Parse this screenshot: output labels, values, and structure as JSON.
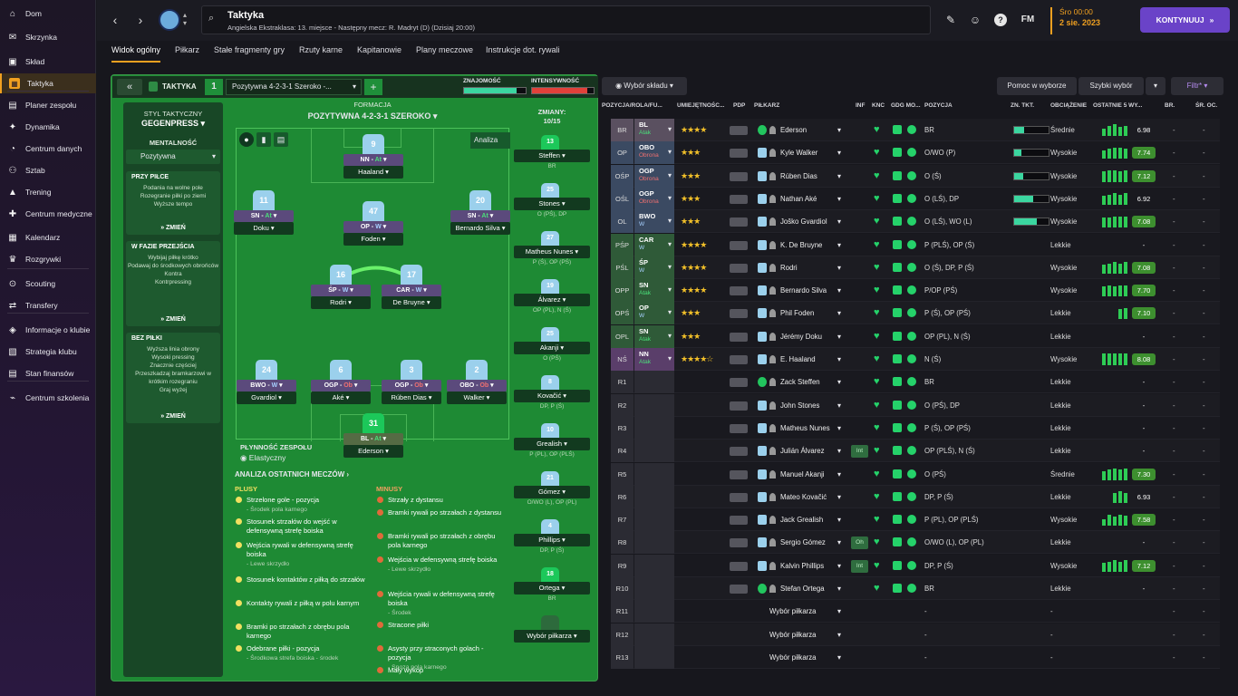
{
  "sidebar": {
    "items": [
      {
        "label": "Dom",
        "icon": "home-icon"
      },
      {
        "label": "Skrzynka",
        "icon": "inbox-icon"
      },
      {
        "label": "Skład",
        "icon": "shirt-icon"
      },
      {
        "label": "Taktyka",
        "icon": "tactics-icon",
        "active": true
      },
      {
        "label": "Planer zespołu",
        "icon": "planner-icon"
      },
      {
        "label": "Dynamika",
        "icon": "dynamics-icon"
      },
      {
        "label": "Centrum danych",
        "icon": "data-hub-icon"
      },
      {
        "label": "Sztab",
        "icon": "staff-icon"
      },
      {
        "label": "Trening",
        "icon": "training-icon"
      },
      {
        "label": "Centrum medyczne",
        "icon": "medical-icon"
      },
      {
        "label": "Kalendarz",
        "icon": "calendar-icon"
      },
      {
        "label": "Rozgrywki",
        "icon": "trophy-icon"
      },
      {
        "label": "Scouting",
        "icon": "scouting-icon"
      },
      {
        "label": "Transfery",
        "icon": "transfers-icon"
      },
      {
        "label": "Informacje o klubie",
        "icon": "club-info-icon"
      },
      {
        "label": "Strategia klubu",
        "icon": "strategy-icon"
      },
      {
        "label": "Stan finansów",
        "icon": "finances-icon"
      },
      {
        "label": "Centrum szkolenia",
        "icon": "academy-icon"
      }
    ]
  },
  "header": {
    "title": "Taktyka",
    "subtitle": "Angielska Ekstraklasa: 13. miejsce - Następny mecz: R. Madryt (D) (Dzisiaj 20:00)",
    "time": "Śro 00:00",
    "date": "2 sie. 2023",
    "continue_label": "KONTYNUUJ",
    "fm_label": "FM"
  },
  "tabs": [
    "Widok ogólny",
    "Piłkarz",
    "Stałe fragmenty gry",
    "Rzuty karne",
    "Kapitanowie",
    "Plany meczowe",
    "Instrukcje dot. rywali"
  ],
  "tactic": {
    "label": "TAKTYKA",
    "slot": "1",
    "name": "Pozytywna 4-2-3-1 Szeroko -...",
    "familiarity_label": "ZNAJOMOŚĆ",
    "familiarity": 0.85,
    "intensity_label": "INTENSYWNOŚĆ",
    "intensity": 0.9,
    "formation_label": "FORMACJA",
    "formation": "POZYTYWNA 4-2-3-1 SZEROKO",
    "analiza": "Analiza",
    "fluidity_label": "PŁYNNOŚĆ ZESPOŁU",
    "fluidity": "Elastyczny",
    "subs_label": "ZMIANY:",
    "subs_count": "10/15"
  },
  "style": {
    "title": "STYL TAKTYCZNY",
    "name": "GEGENPRESS",
    "mentality_label": "MENTALNOŚĆ",
    "mentality": "Pozytywna",
    "with_ball_title": "PRZY PIŁCE",
    "with_ball_lines": [
      "Podania na wolne pole",
      "Rozegranie piłki po ziemi",
      "Wyższe tempo"
    ],
    "transition_title": "W FAZIE PRZEJŚCIA",
    "transition_lines": [
      "Wybijaj piłkę krótko",
      "Podawaj do środkowych obrońców",
      "Kontra",
      "Kontrpressing"
    ],
    "without_ball_title": "BEZ PIŁKI",
    "without_ball_lines": [
      "Wyższa linia obrony",
      "Wysoki pressing",
      "Znacznie częściej",
      "Przeszkadzaj bramkarzowi w krótkim rozegraniu",
      "Graj wyżej"
    ],
    "change_label": "ZMIEŃ"
  },
  "pitch_players": [
    {
      "num": "9",
      "role": "NN",
      "duty": "At",
      "name": "Haaland"
    },
    {
      "num": "11",
      "role": "SN",
      "duty": "At",
      "name": "Doku"
    },
    {
      "num": "47",
      "role": "OP",
      "duty": "W",
      "name": "Foden"
    },
    {
      "num": "20",
      "role": "SN",
      "duty": "At",
      "name": "Bernardo Silva"
    },
    {
      "num": "16",
      "role": "ŚP",
      "duty": "W",
      "name": "Rodri"
    },
    {
      "num": "17",
      "role": "CAR",
      "duty": "W",
      "name": "De Bruyne"
    },
    {
      "num": "24",
      "role": "BWO",
      "duty": "W",
      "name": "Gvardiol"
    },
    {
      "num": "6",
      "role": "OGP",
      "duty": "Ob",
      "name": "Aké"
    },
    {
      "num": "3",
      "role": "OGP",
      "duty": "Ob",
      "name": "Rúben Dias"
    },
    {
      "num": "2",
      "role": "OBO",
      "duty": "Ob",
      "name": "Walker"
    },
    {
      "num": "31",
      "role": "BL",
      "duty": "At",
      "name": "Ederson",
      "gk": true
    }
  ],
  "subs": [
    {
      "num": "13",
      "name": "Steffen",
      "pos": "BR",
      "gk": true
    },
    {
      "num": "25",
      "name": "Stones",
      "pos": "O (PŚ), DP"
    },
    {
      "num": "27",
      "name": "Matheus Nunes",
      "pos": "P (Ś), OP (PŚ)"
    },
    {
      "num": "19",
      "name": "Álvarez",
      "pos": "OP (PL), N (Ś)"
    },
    {
      "num": "25",
      "name": "Akanji",
      "pos": "O (PŚ)"
    },
    {
      "num": "8",
      "name": "Kovačić",
      "pos": "DP, P (Ś)"
    },
    {
      "num": "10",
      "name": "Grealish",
      "pos": "P (PL), OP (PLŚ)"
    },
    {
      "num": "21",
      "name": "Gómez",
      "pos": "O/WO (L), OP (PL)"
    },
    {
      "num": "4",
      "name": "Phillips",
      "pos": "DP, P (Ś)"
    },
    {
      "num": "18",
      "name": "Ortega",
      "pos": "BR",
      "gk": true
    },
    {
      "num": "",
      "name": "Wybór piłkarza",
      "pos": ""
    }
  ],
  "analysis": {
    "title": "ANALIZA OSTATNICH MECZÓW",
    "plus_title": "PLUSY",
    "minus_title": "MINUSY",
    "plus": [
      {
        "t": "Strzelone gole - pozycja",
        "s": "- Środek pola karnego"
      },
      {
        "t": "Stosunek strzałów do wejść w defensywną strefę boiska",
        "s": ""
      },
      {
        "t": "Wejścia rywali w defensywną strefę boiska",
        "s": "- Lewe skrzydło"
      },
      {
        "t": "Stosunek kontaktów z piłką do strzałów",
        "s": ""
      },
      {
        "t": "Kontakty rywali z piłką w polu karnym",
        "s": ""
      },
      {
        "t": "Bramki po strzałach z obrębu pola karnego",
        "s": ""
      },
      {
        "t": "Odebrane piłki - pozycja",
        "s": "- Środkowa strefa boiska - środek"
      }
    ],
    "minus": [
      {
        "t": "Strzały z dystansu",
        "s": ""
      },
      {
        "t": "Bramki rywali po strzałach z dystansu",
        "s": ""
      },
      {
        "t": "Bramki rywali po strzałach z obrębu pola karnego",
        "s": ""
      },
      {
        "t": "Wejścia w defensywną strefę boiska",
        "s": "- Lewe skrzydło"
      },
      {
        "t": "Wejścia rywali w defensywną strefę boiska",
        "s": "- Środek"
      },
      {
        "t": "Stracone piłki",
        "s": ""
      },
      {
        "t": "Asysty przy straconych golach - pozycja",
        "s": "- Spoza pola karnego"
      },
      {
        "t": "Mały wykop",
        "s": ""
      }
    ]
  },
  "squad": {
    "picker_label": "Wybór składu",
    "help_label": "Pomoc w wyborze",
    "quick_label": "Szybki wybór",
    "filter_label": "Filtr*",
    "columns": [
      "POZYCJA/ROLA/FU...",
      "UMIEJĘTNOŚC...",
      "PDP",
      "PIŁKARZ",
      "INF",
      "KNC",
      "GDG MO...",
      "POZYCJA",
      "ZN. TKT.",
      "OBCIĄŻENIE",
      "OSTATNIE 5 WY...",
      "BR.",
      "ŚR. OC."
    ],
    "rows": [
      {
        "slot": "BR",
        "role": "BL",
        "duty": "Atak",
        "stars": "★★★★",
        "name": "Ederson",
        "pos": "BR",
        "fam": 0.3,
        "load": "Średnie",
        "form": [
          6,
          8,
          9,
          7,
          8
        ],
        "rating": "6.98",
        "good": false,
        "gk": true,
        "inf": "",
        "br": "-",
        "avg": "-"
      },
      {
        "slot": "OP",
        "role": "OBO",
        "duty": "Obrona",
        "stars": "★★★",
        "name": "Kyle Walker",
        "pos": "O/WO (P)",
        "fam": 0.2,
        "load": "Wysokie",
        "form": [
          7,
          8,
          9,
          9,
          8
        ],
        "rating": "7.74",
        "good": true,
        "inf": "",
        "br": "-",
        "avg": "-"
      },
      {
        "slot": "OŚP",
        "role": "OGP",
        "duty": "Obrona",
        "stars": "★★★",
        "name": "Rúben Dias",
        "pos": "O (Ś)",
        "fam": 0.25,
        "load": "Wysokie",
        "form": [
          8,
          9,
          9,
          8,
          9
        ],
        "rating": "7.12",
        "good": true,
        "inf": "",
        "br": "-",
        "avg": "-"
      },
      {
        "slot": "OŚL",
        "role": "OGP",
        "duty": "Obrona",
        "stars": "★★★",
        "name": "Nathan Aké",
        "pos": "O (LŚ), DP",
        "fam": 0.55,
        "load": "Wysokie",
        "form": [
          7,
          8,
          9,
          8,
          9
        ],
        "rating": "6.92",
        "good": false,
        "inf": "",
        "br": "-",
        "avg": "-"
      },
      {
        "slot": "OL",
        "role": "BWO",
        "duty": "W",
        "stars": "★★★",
        "name": "Joško Gvardiol",
        "pos": "O (LŚ), WO (L)",
        "fam": 0.65,
        "load": "Wysokie",
        "form": [
          8,
          8,
          9,
          9,
          9
        ],
        "rating": "7.08",
        "good": true,
        "inf": "",
        "br": "-",
        "avg": "-"
      },
      {
        "slot": "PŚP",
        "role": "CAR",
        "duty": "W",
        "stars": "★★★★",
        "name": "K. De Bruyne",
        "pos": "P (PLŚ), OP (Ś)",
        "fam": 0.0,
        "load": "Lekkie",
        "form": [],
        "rating": "-",
        "good": false,
        "inf": "",
        "br": "-",
        "avg": "-"
      },
      {
        "slot": "PŚL",
        "role": "ŚP",
        "duty": "W",
        "stars": "★★★★",
        "name": "Rodri",
        "pos": "O (Ś), DP, P (Ś)",
        "fam": 0.0,
        "load": "Wysokie",
        "form": [
          7,
          8,
          9,
          8,
          9
        ],
        "rating": "7.08",
        "good": true,
        "inf": "",
        "br": "-",
        "avg": "-"
      },
      {
        "slot": "OPP",
        "role": "SN",
        "duty": "Atak",
        "stars": "★★★★",
        "name": "Bernardo Silva",
        "pos": "P/OP (PŚ)",
        "fam": 0.0,
        "load": "Wysokie",
        "form": [
          8,
          9,
          8,
          9,
          9
        ],
        "rating": "7.70",
        "good": true,
        "inf": "",
        "br": "-",
        "avg": "-"
      },
      {
        "slot": "OPŚ",
        "role": "OP",
        "duty": "W",
        "stars": "★★★",
        "name": "Phil Foden",
        "pos": "P (Ś), OP (PŚ)",
        "fam": 0.0,
        "load": "Lekkie",
        "form": [
          0,
          0,
          0,
          8,
          9
        ],
        "rating": "7.10",
        "good": true,
        "inf": "",
        "br": "-",
        "avg": "-"
      },
      {
        "slot": "OPL",
        "role": "SN",
        "duty": "Atak",
        "stars": "★★★",
        "name": "Jérémy Doku",
        "pos": "OP (PL), N (Ś)",
        "fam": 0.0,
        "load": "Lekkie",
        "form": [],
        "rating": "-",
        "good": false,
        "inf": "",
        "br": "-",
        "avg": "-"
      },
      {
        "slot": "NŚ",
        "role": "NN",
        "duty": "Atak",
        "stars": "★★★★☆",
        "name": "E. Haaland",
        "pos": "N (Ś)",
        "fam": 0.0,
        "load": "Wysokie",
        "form": [
          9,
          9,
          9,
          9,
          9
        ],
        "rating": "8.08",
        "good": true,
        "inf": "",
        "br": "-",
        "avg": "-"
      },
      {
        "slot": "R1",
        "role": "",
        "duty": "",
        "stars": "",
        "name": "Zack Steffen",
        "pos": "BR",
        "fam": 0.0,
        "load": "Lekkie",
        "form": [],
        "rating": "-",
        "good": false,
        "gk": true,
        "inf": "",
        "br": "-",
        "avg": "-"
      },
      {
        "slot": "R2",
        "role": "",
        "duty": "",
        "stars": "",
        "name": "John Stones",
        "pos": "O (PŚ), DP",
        "fam": 0.0,
        "load": "Lekkie",
        "form": [],
        "rating": "-",
        "good": false,
        "inf": "",
        "br": "-",
        "avg": "-"
      },
      {
        "slot": "R3",
        "role": "",
        "duty": "",
        "stars": "",
        "name": "Matheus Nunes",
        "pos": "P (Ś), OP (PŚ)",
        "fam": 0.0,
        "load": "Lekkie",
        "form": [],
        "rating": "-",
        "good": false,
        "inf": "",
        "br": "-",
        "avg": "-"
      },
      {
        "slot": "R4",
        "role": "",
        "duty": "",
        "stars": "",
        "name": "Julián Álvarez",
        "pos": "OP (PLŚ), N (Ś)",
        "fam": 0.0,
        "load": "Lekkie",
        "form": [],
        "rating": "-",
        "good": false,
        "inf": "Int",
        "br": "-",
        "avg": "-"
      },
      {
        "slot": "R5",
        "role": "",
        "duty": "",
        "stars": "",
        "name": "Manuel Akanji",
        "pos": "O (PŚ)",
        "fam": 0.0,
        "load": "Średnie",
        "form": [
          7,
          8,
          9,
          8,
          9
        ],
        "rating": "7.30",
        "good": true,
        "inf": "",
        "br": "-",
        "avg": "-"
      },
      {
        "slot": "R6",
        "role": "",
        "duty": "",
        "stars": "",
        "name": "Mateo Kovačić",
        "pos": "DP, P (Ś)",
        "fam": 0.0,
        "load": "Lekkie",
        "form": [
          0,
          0,
          8,
          9,
          8
        ],
        "rating": "6.93",
        "good": false,
        "inf": "",
        "br": "-",
        "avg": "-"
      },
      {
        "slot": "R7",
        "role": "",
        "duty": "",
        "stars": "",
        "name": "Jack Grealish",
        "pos": "P (PL), OP (PLŚ)",
        "fam": 0.0,
        "load": "Wysokie",
        "form": [
          5,
          9,
          7,
          9,
          8
        ],
        "rating": "7.58",
        "good": true,
        "inf": "",
        "br": "-",
        "avg": "-"
      },
      {
        "slot": "R8",
        "role": "",
        "duty": "",
        "stars": "",
        "name": "Sergio Gómez",
        "pos": "O/WO (L), OP (PL)",
        "fam": 0.0,
        "load": "Lekkie",
        "form": [],
        "rating": "-",
        "good": false,
        "inf": "Oh",
        "br": "-",
        "avg": "-"
      },
      {
        "slot": "R9",
        "role": "",
        "duty": "",
        "stars": "",
        "name": "Kalvin Phillips",
        "pos": "DP, P (Ś)",
        "fam": 0.0,
        "load": "Wysokie",
        "form": [
          7,
          8,
          9,
          8,
          9
        ],
        "rating": "7.12",
        "good": true,
        "inf": "Int",
        "br": "-",
        "avg": "-"
      },
      {
        "slot": "R10",
        "role": "",
        "duty": "",
        "stars": "",
        "name": "Stefan Ortega",
        "pos": "BR",
        "fam": 0.0,
        "load": "Lekkie",
        "form": [],
        "rating": "-",
        "good": false,
        "gk": true,
        "inf": "",
        "br": "-",
        "avg": "-"
      },
      {
        "slot": "R11",
        "role": "",
        "duty": "",
        "stars": "",
        "name": "Wybór piłkarza",
        "pos": "-",
        "fam": 0.0,
        "load": "-",
        "form": [],
        "rating": "",
        "good": false,
        "empty": true,
        "inf": "",
        "br": "-",
        "avg": "-"
      },
      {
        "slot": "R12",
        "role": "",
        "duty": "",
        "stars": "",
        "name": "Wybór piłkarza",
        "pos": "-",
        "fam": 0.0,
        "load": "-",
        "form": [],
        "rating": "",
        "good": false,
        "empty": true,
        "inf": "",
        "br": "-",
        "avg": "-"
      },
      {
        "slot": "R13",
        "role": "",
        "duty": "",
        "stars": "",
        "name": "Wybór piłkarza",
        "pos": "-",
        "fam": 0.0,
        "load": "-",
        "form": [],
        "rating": "",
        "good": false,
        "empty": true,
        "inf": "",
        "br": "-",
        "avg": "-"
      }
    ]
  }
}
